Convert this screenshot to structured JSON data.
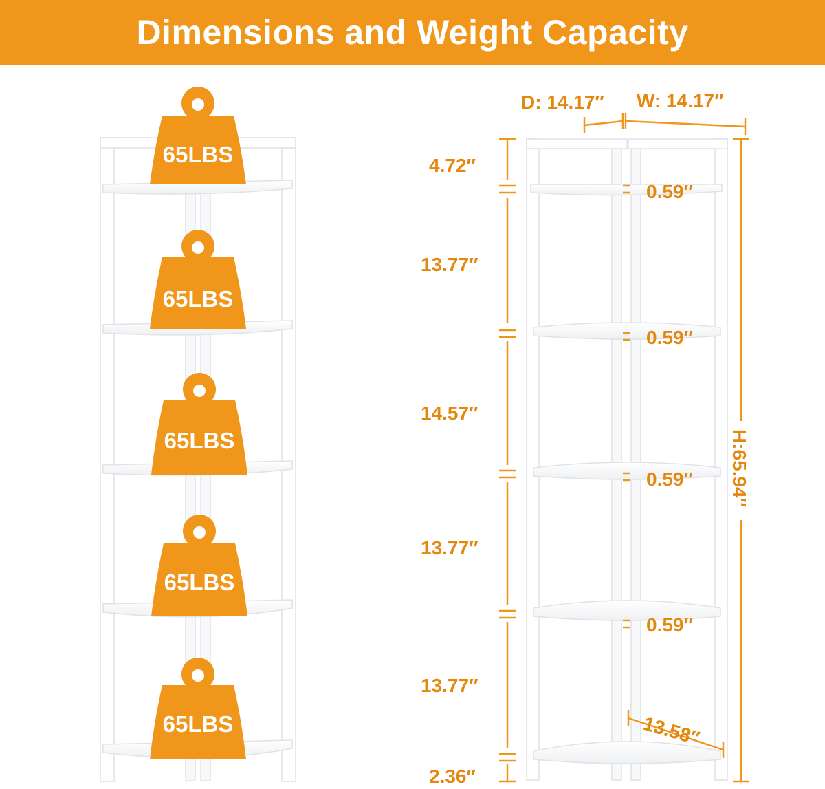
{
  "title": "Dimensions and Weight Capacity",
  "colors": {
    "accent": "#f0961a",
    "text_accent": "#e4870f",
    "shelf": "#ffffff"
  },
  "shelf_capacity": {
    "label": "65LBS",
    "count": 5,
    "icon": "weight-icon"
  },
  "dimensions": {
    "depth": "D: 14.17″",
    "width": "W: 14.17″",
    "height": "H:65.94″",
    "diagonal": "13.58″",
    "top_gap": "4.72″",
    "gap_1": "13.77″",
    "gap_2": "14.57″",
    "gap_3": "13.77″",
    "gap_4": "13.77″",
    "bottom_gap": "2.36″",
    "shelf_thickness": "0.59″"
  }
}
